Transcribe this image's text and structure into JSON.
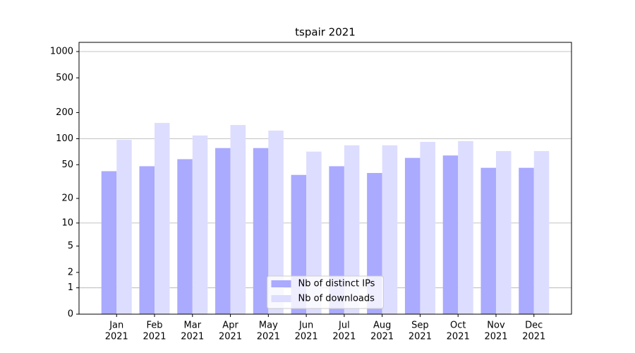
{
  "chart_data": {
    "type": "bar",
    "title": "tspair 2021",
    "categories": [
      [
        "Jan",
        "2021"
      ],
      [
        "Feb",
        "2021"
      ],
      [
        "Mar",
        "2021"
      ],
      [
        "Apr",
        "2021"
      ],
      [
        "May",
        "2021"
      ],
      [
        "Jun",
        "2021"
      ],
      [
        "Jul",
        "2021"
      ],
      [
        "Aug",
        "2021"
      ],
      [
        "Sep",
        "2021"
      ],
      [
        "Oct",
        "2021"
      ],
      [
        "Nov",
        "2021"
      ],
      [
        "Dec",
        "2021"
      ]
    ],
    "series": [
      {
        "name": "Nb of distinct IPs",
        "color": "#aaaaff",
        "values": [
          42,
          48,
          58,
          78,
          78,
          38,
          48,
          40,
          60,
          64,
          46,
          46
        ]
      },
      {
        "name": "Nb of downloads",
        "color": "#ddddff",
        "values": [
          97,
          152,
          109,
          144,
          124,
          71,
          84,
          84,
          92,
          94,
          72,
          72
        ]
      }
    ],
    "yscale": "log1p",
    "ylim": [
      0,
      1273
    ],
    "yticks": [
      0,
      1,
      2,
      5,
      10,
      20,
      50,
      100,
      200,
      500,
      1000
    ],
    "grid_ticks": [
      1,
      10,
      100,
      1000
    ],
    "legend": "lower center"
  }
}
